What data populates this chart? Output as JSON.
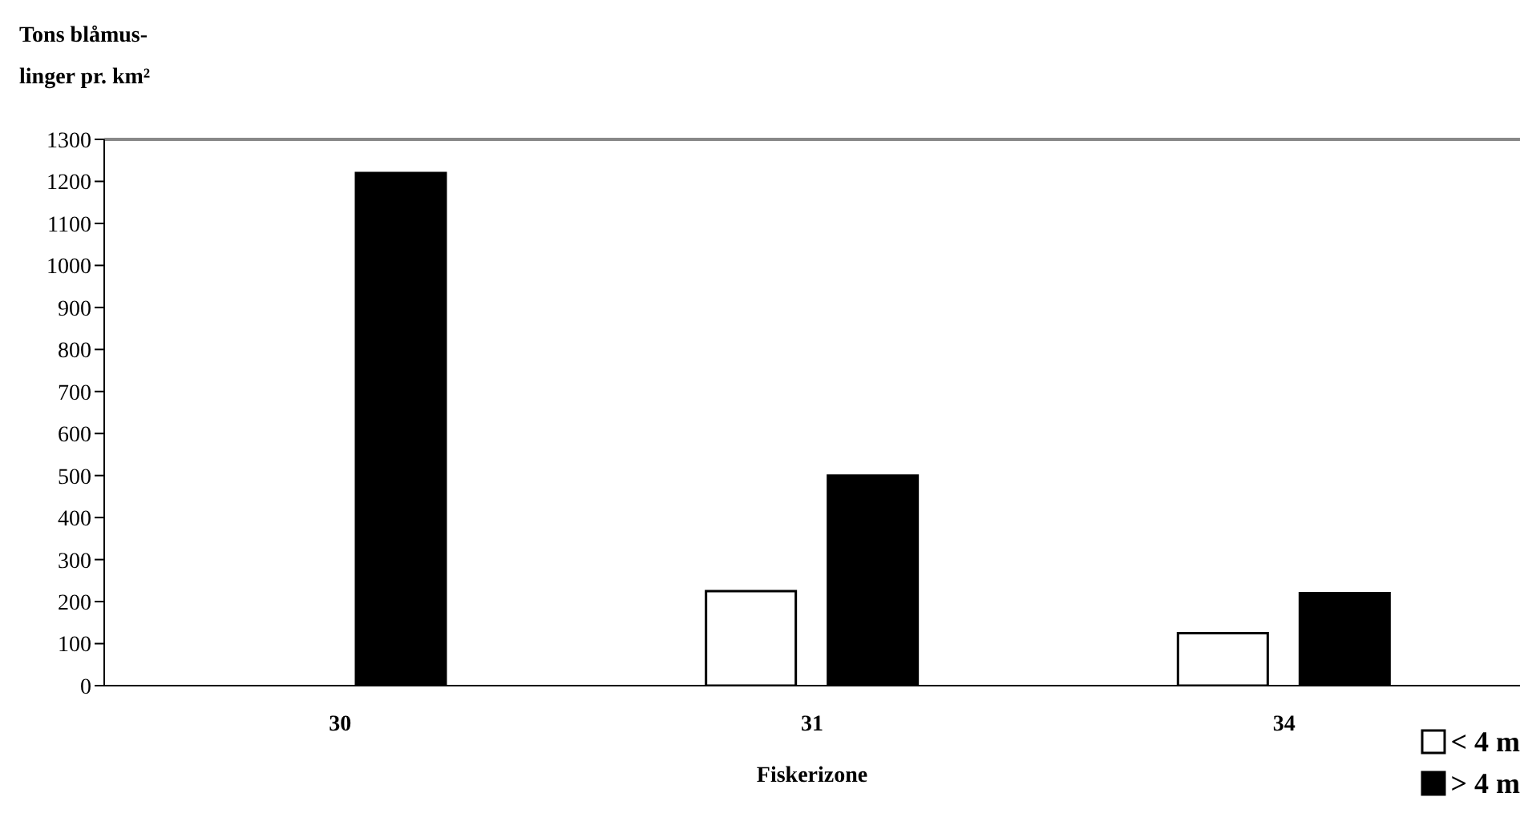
{
  "chart_data": {
    "type": "bar",
    "ylabel": "Tons blåmus-linger pr. km²",
    "xlabel": "Fiskerizone",
    "categories": [
      "30",
      "31",
      "34"
    ],
    "series": [
      {
        "name": "< 4 m",
        "color": "#ffffff",
        "values": [
          null,
          225,
          125
        ]
      },
      {
        "name": "> 4 m",
        "color": "#000000",
        "values": [
          1220,
          500,
          220
        ]
      }
    ],
    "ylim": [
      0,
      1300
    ],
    "yticks": [
      0,
      100,
      200,
      300,
      400,
      500,
      600,
      700,
      800,
      900,
      1000,
      1100,
      1200,
      1300
    ],
    "grid": false,
    "legend": "bottom right"
  }
}
